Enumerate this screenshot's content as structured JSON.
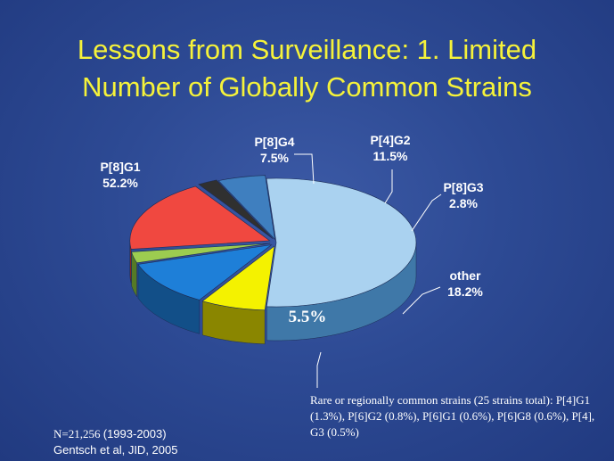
{
  "title_line1": "Lessons from Surveillance: 1. Limited",
  "title_line2": "Number of Globally Common Strains",
  "chart_data": {
    "type": "pie",
    "style": "3d-exploded",
    "slices": [
      {
        "label": "P[8]G1",
        "value": 52.2,
        "display": "52.2%",
        "color": "#aad2f0",
        "side": "#3f78a8"
      },
      {
        "label": "P[8]G4",
        "value": 7.5,
        "display": "7.5%",
        "color": "#f4f200",
        "side": "#8a8600"
      },
      {
        "label": "P[4]G2",
        "value": 11.5,
        "display": "11.5%",
        "color": "#1e7fd8",
        "side": "#124f88"
      },
      {
        "label": "P[8]G3",
        "value": 2.8,
        "display": "2.8%",
        "color": "#9ccc50",
        "side": "#557a26"
      },
      {
        "label": "other",
        "value": 18.2,
        "display": "18.2%",
        "color": "#f04840",
        "side": "#982420"
      },
      {
        "label": "",
        "value": 2.3,
        "display": "",
        "color": "#303030",
        "side": "#141414"
      },
      {
        "label": "",
        "value": 5.5,
        "display": "5.5%",
        "color": "#3f7fbf",
        "side": "#2a5888"
      }
    ]
  },
  "footnote": "Rare or regionally common strains (25 strains total): P[4]G1 (1.3%), P[6]G2 (0.8%), P[6]G1 (0.6%), P[6]G8 (0.6%),  P[4], G3 (0.5%)",
  "sample_prefix": "N=21,256",
  "sample_years": "(1993-2003)",
  "citation": "Gentsch et al, JID, 2005"
}
